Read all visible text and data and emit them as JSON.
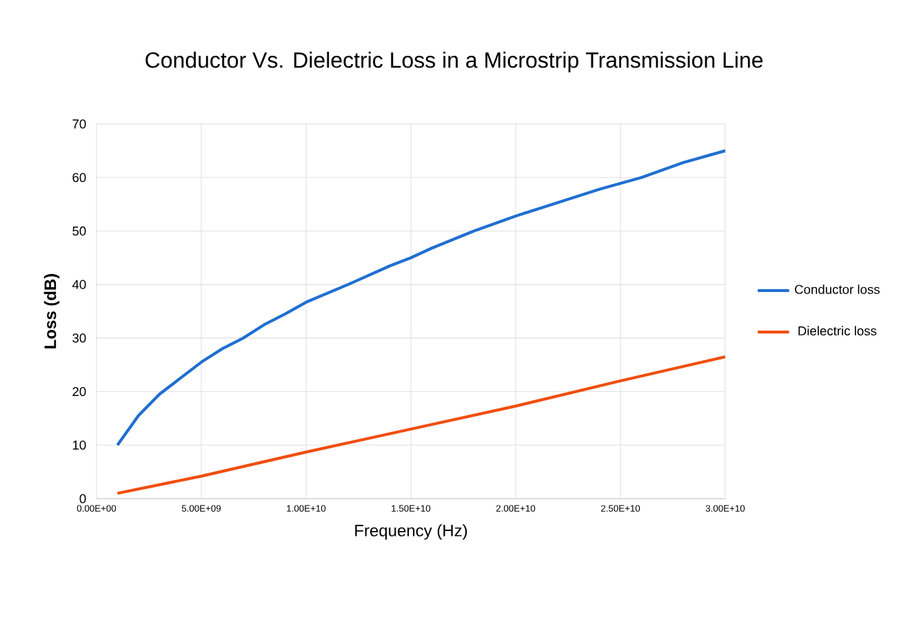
{
  "chart_data": {
    "type": "line",
    "title": "Conductor Vs. Dielectric Loss in a Microstrip Transmission Line",
    "xlabel": "Frequency (Hz)",
    "ylabel": "Loss (dB)",
    "xlim": [
      0,
      30000000000
    ],
    "ylim": [
      0,
      70
    ],
    "xticks": [
      {
        "value": 0,
        "label": "0.00E+00"
      },
      {
        "value": 5000000000,
        "label": "5.00E+09"
      },
      {
        "value": 10000000000,
        "label": "1.00E+10"
      },
      {
        "value": 15000000000,
        "label": "1.50E+10"
      },
      {
        "value": 20000000000,
        "label": "2.00E+10"
      },
      {
        "value": 25000000000,
        "label": "2.50E+10"
      },
      {
        "value": 30000000000,
        "label": "3.00E+10"
      }
    ],
    "yticks": [
      0,
      10,
      20,
      30,
      40,
      50,
      60,
      70
    ],
    "grid": true,
    "legend": "right",
    "marker": "none",
    "line_style": "solid",
    "series": [
      {
        "name": "Conductor loss",
        "color": "#1f6fd0",
        "x": [
          1000000000,
          2000000000,
          3000000000,
          4000000000,
          5000000000,
          6000000000,
          7000000000,
          8000000000,
          9000000000,
          10000000000,
          12000000000,
          14000000000,
          15000000000,
          16000000000,
          18000000000,
          20000000000,
          22000000000,
          24000000000,
          26000000000,
          28000000000,
          30000000000
        ],
        "values": [
          10,
          15.5,
          19.5,
          22.5,
          25.5,
          28,
          30,
          32.5,
          34.5,
          36.7,
          40,
          43.5,
          45,
          46.8,
          50,
          52.8,
          55.3,
          57.8,
          60,
          62.8,
          65
        ]
      },
      {
        "name": "Dielectric loss",
        "color": "#f04e0e",
        "x": [
          1000000000,
          5000000000,
          10000000000,
          15000000000,
          20000000000,
          25000000000,
          30000000000
        ],
        "values": [
          1,
          4.2,
          8.7,
          13,
          17.3,
          22,
          26.5
        ]
      }
    ]
  }
}
